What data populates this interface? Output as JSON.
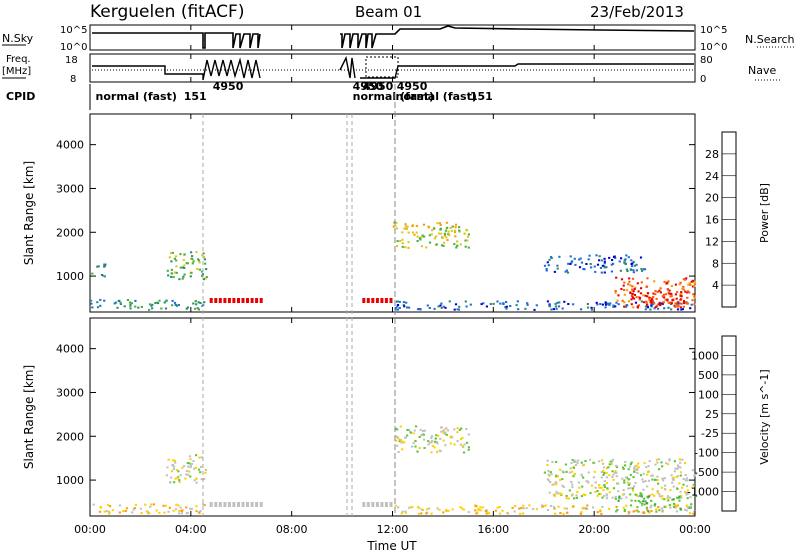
{
  "header": {
    "station": "Kerguelen (fitACF)",
    "beam": "Beam 01",
    "date": "23/Feb/2013"
  },
  "top_panels": {
    "nsky": {
      "label": "N.Sky",
      "tick_top": "10^5",
      "tick_bottom": "10^0"
    },
    "nsearch": {
      "label": "N.Search",
      "tick_top": "10^5",
      "tick_bottom": "10^0"
    },
    "freq": {
      "label_line1": "Freq.",
      "label_line2": "[MHz]",
      "tick_top": "18",
      "tick_bottom": "8"
    },
    "nave": {
      "label": "Nave",
      "tick_top": "80",
      "tick_bottom": "0"
    },
    "cpid": {
      "label": "CPID",
      "entries": [
        {
          "text": "normal (fast)",
          "time_h": 0.1
        },
        {
          "text": "151",
          "time_h": 3.6
        },
        {
          "text": "4950",
          "time_h": 4.75
        },
        {
          "text": "4950",
          "time_h": 10.3
        },
        {
          "text": "4950",
          "time_h": 10.7
        },
        {
          "text": "normal (fast)",
          "time_h": 10.3
        },
        {
          "text": "normal (fast)",
          "time_h": 12.0
        },
        {
          "text": "4950",
          "time_h": 12.05
        },
        {
          "text": "151",
          "time_h": 14.95
        }
      ]
    }
  },
  "chart_data": [
    {
      "type": "heatmap",
      "name": "power",
      "ylabel": "Slant Range [km]",
      "yticks": [
        1000,
        2000,
        3000,
        4000
      ],
      "ylim": [
        180,
        4700
      ],
      "xlim": [
        0,
        24
      ],
      "colorbar": {
        "label": "Power [dB]",
        "ticks": [
          "4",
          "8",
          "12",
          "16",
          "20",
          "24",
          "28"
        ],
        "colors": [
          "#0000dd",
          "#1e6ed2",
          "#2e8b6e",
          "#4ab040",
          "#d8c81a",
          "#ff9a00",
          "#ff5a10",
          "#e80000"
        ]
      },
      "scatter_regions": [
        {
          "t0": 0.0,
          "t1": 4.7,
          "r0": 250,
          "r1": 480,
          "level": 2
        },
        {
          "t0": 3.0,
          "t1": 4.6,
          "r0": 950,
          "r1": 1600,
          "level": 3
        },
        {
          "t0": 0.0,
          "t1": 0.6,
          "r0": 1000,
          "r1": 1300,
          "level": 2
        },
        {
          "t0": 12.0,
          "t1": 15.0,
          "r0": 1650,
          "r1": 2250,
          "level": 4
        },
        {
          "t0": 12.0,
          "t1": 24.0,
          "r0": 250,
          "r1": 450,
          "level": 1
        },
        {
          "t0": 18.0,
          "t1": 22.0,
          "r0": 1100,
          "r1": 1500,
          "level": 1
        },
        {
          "t0": 20.8,
          "t1": 24.0,
          "r0": 300,
          "r1": 1000,
          "level": 6
        },
        {
          "t0": 21.3,
          "t1": 23.6,
          "r0": 300,
          "r1": 700,
          "level": 7
        }
      ]
    },
    {
      "type": "heatmap",
      "name": "velocity",
      "ylabel": "Slant Range [km]",
      "yticks": [
        1000,
        2000,
        3000,
        4000
      ],
      "ylim": [
        180,
        4700
      ],
      "xlim": [
        0,
        24
      ],
      "colorbar": {
        "label": "Velocity [m s^-1]",
        "ticks": [
          "1000",
          "500",
          "100",
          "25",
          "-25",
          "-100",
          "-500",
          "-1000"
        ],
        "colors": [
          "#2030c0",
          "#2e8060",
          "#3da040",
          "#58c830",
          "#c0c0c0",
          "#ffd000",
          "#ff9a00",
          "#ff5a10",
          "#e80000"
        ]
      },
      "scatter_regions": [
        {
          "t0": 0.0,
          "t1": 4.7,
          "r0": 250,
          "r1": 480,
          "level": 5
        },
        {
          "t0": 3.0,
          "t1": 4.6,
          "r0": 950,
          "r1": 1600,
          "level": 4
        },
        {
          "t0": 12.0,
          "t1": 15.0,
          "r0": 1650,
          "r1": 2250,
          "level": 4
        },
        {
          "t0": 12.0,
          "t1": 24.0,
          "r0": 250,
          "r1": 450,
          "level": 5
        },
        {
          "t0": 18.0,
          "t1": 24.0,
          "r0": 600,
          "r1": 1500,
          "level": 4
        },
        {
          "t0": 20.8,
          "t1": 24.0,
          "r0": 300,
          "r1": 700,
          "level": 3
        }
      ]
    }
  ],
  "x_axis": {
    "label": "Time UT",
    "ticks": [
      "00:00",
      "04:00",
      "08:00",
      "12:00",
      "16:00",
      "20:00",
      "00:00"
    ]
  }
}
